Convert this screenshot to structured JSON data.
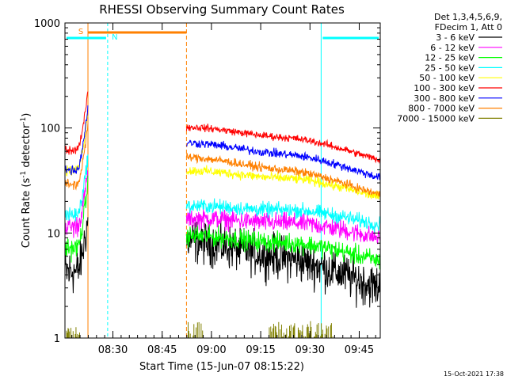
{
  "chart_data": {
    "type": "line",
    "title": "RHESSI Observing Summary Count Rates",
    "xlabel": "Start Time (15-Jun-07 08:15:22)",
    "ylabel_main": "Count Rate (s",
    "ylabel_sup1": "-1",
    "ylabel_mid": " detector",
    "ylabel_sup2": "-1",
    "ylabel_end": ")",
    "y_scale": "log",
    "ylim": [
      1,
      1000
    ],
    "xlim_minutes": [
      0,
      96
    ],
    "x_ticks": [
      {
        "t": 14.6,
        "label": "08:30"
      },
      {
        "t": 29.6,
        "label": "08:45"
      },
      {
        "t": 44.6,
        "label": "09:00"
      },
      {
        "t": 59.6,
        "label": "09:15"
      },
      {
        "t": 74.6,
        "label": "09:30"
      },
      {
        "t": 89.6,
        "label": "09:45"
      }
    ],
    "y_ticks": [
      {
        "v": 1,
        "label": "1"
      },
      {
        "v": 10,
        "label": "10"
      },
      {
        "v": 100,
        "label": "100"
      },
      {
        "v": 1000,
        "label": "1000"
      }
    ],
    "legend": {
      "placement": "right",
      "header1": "Det 1,3,4,5,6,9,",
      "header2": "FDecim 1, Att 0"
    },
    "segments": [
      {
        "from": 0,
        "to": 7,
        "shape": "rise"
      },
      {
        "from": 37,
        "to": 96,
        "shape": "decay"
      }
    ],
    "series": [
      {
        "name": "3 - 6 keV",
        "color": "#000000",
        "start": 4.3,
        "peak": 14,
        "decay_start": 10,
        "decay_end": 3.8,
        "noise": 0.18
      },
      {
        "name": "6 - 12 keV",
        "color": "#ff00ff",
        "start": 11.5,
        "peak": 38,
        "decay_start": 16,
        "decay_end": 12,
        "noise": 0.08
      },
      {
        "name": "12 - 25 keV",
        "color": "#00ff00",
        "start": 7.2,
        "peak": 30,
        "decay_start": 11,
        "decay_end": 7.2,
        "noise": 0.08
      },
      {
        "name": "25 - 50 keV",
        "color": "#00ffff",
        "start": 15,
        "peak": 55,
        "decay_start": 21,
        "decay_end": 16,
        "noise": 0.06
      },
      {
        "name": "50 - 100 keV",
        "color": "#ffff00",
        "start": 40,
        "peak": 140,
        "decay_start": 46,
        "decay_end": 29,
        "noise": 0.04
      },
      {
        "name": "100 - 300 keV",
        "color": "#ff0000",
        "start": 62,
        "peak": 230,
        "decay_start": 120,
        "decay_end": 65,
        "noise": 0.03
      },
      {
        "name": "300 - 800 keV",
        "color": "#0000ff",
        "start": 40,
        "peak": 160,
        "decay_start": 85,
        "decay_end": 44,
        "noise": 0.035
      },
      {
        "name": "800 - 7000 keV",
        "color": "#ff8000",
        "start": 29,
        "peak": 110,
        "decay_start": 62,
        "decay_end": 30,
        "noise": 0.035
      },
      {
        "name": "7000 - 15000 keV",
        "color": "#808000",
        "start": 1,
        "peak": 1,
        "decay_start": 1,
        "decay_end": 1,
        "noise": 0
      }
    ],
    "flags": {
      "saa_label": "S",
      "night_label": "N",
      "saa_color": "#ff8000",
      "night_color": "#00ffff",
      "saa_interval": [
        7,
        37
      ],
      "night_intervals": [
        [
          0,
          13
        ],
        [
          78,
          96
        ]
      ]
    },
    "timestamp": "15-Oct-2021 17:38"
  }
}
